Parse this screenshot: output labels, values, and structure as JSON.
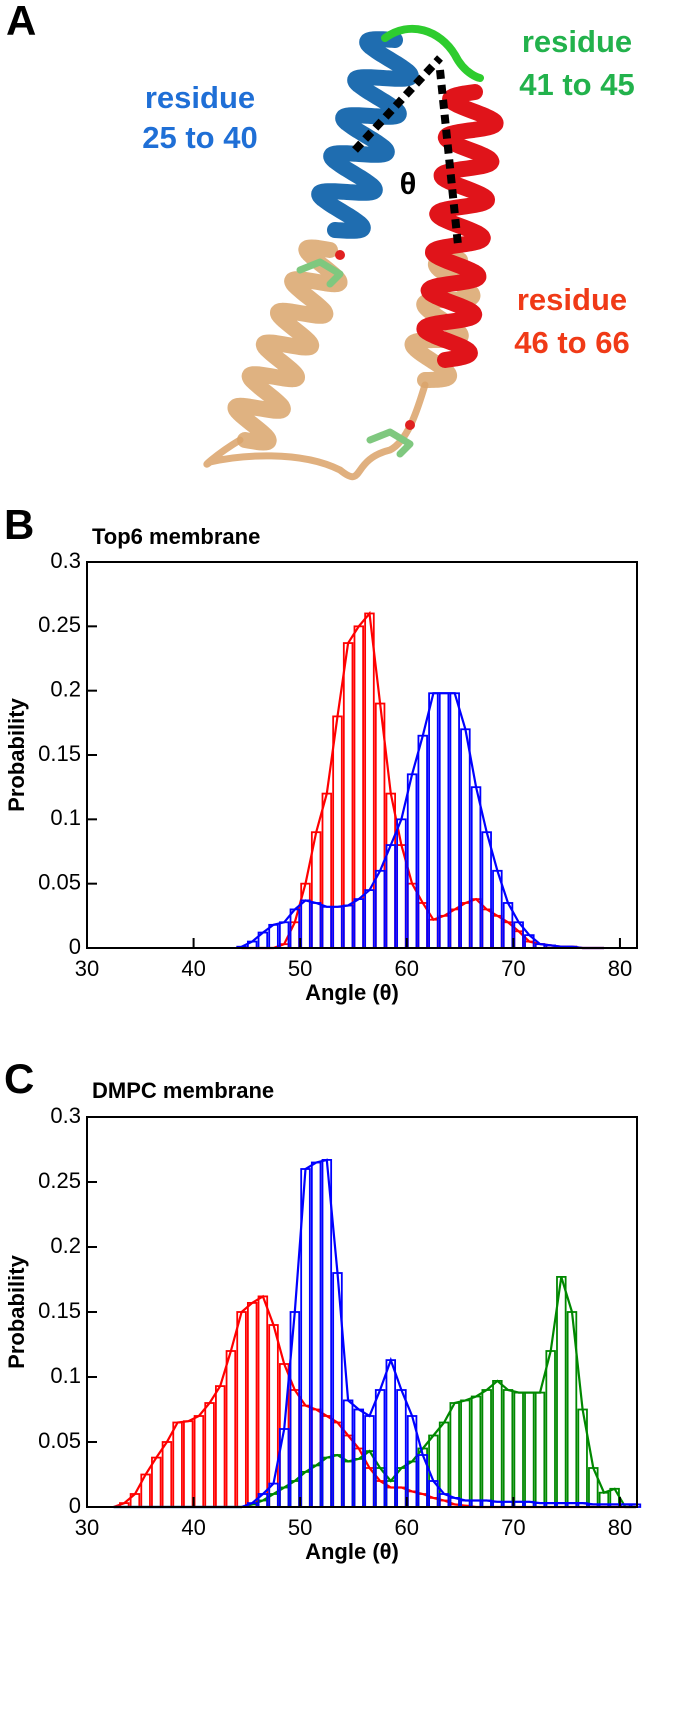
{
  "panel_a": {
    "label": "A",
    "theta": "θ",
    "annotations": [
      {
        "lines": [
          "residue",
          "25 to 40"
        ],
        "color": "#1f6fd6"
      },
      {
        "lines": [
          "residue",
          "41 to 45"
        ],
        "color": "#22b24c"
      },
      {
        "lines": [
          "residue",
          "46 to 66"
        ],
        "color": "#f03a17"
      }
    ]
  },
  "chart_data": [
    {
      "type": "histogram",
      "panel_label": "B",
      "title": "Top6 membrane",
      "xlabel": "Angle (θ)",
      "ylabel": "Probability",
      "xlim": [
        30,
        81.6
      ],
      "ylim": [
        0,
        0.3
      ],
      "xticks": [
        30,
        40,
        50,
        60,
        70,
        80
      ],
      "yticks": [
        0,
        0.05,
        0.1,
        0.15,
        0.2,
        0.25,
        0.3
      ],
      "bins": [
        44,
        45,
        46,
        47,
        48,
        49,
        50,
        51,
        52,
        53,
        54,
        55,
        56,
        57,
        58,
        59,
        60,
        61,
        62,
        63,
        64,
        65,
        66,
        67,
        68,
        69,
        70,
        71,
        72,
        73,
        74,
        75,
        76,
        77,
        78,
        79
      ],
      "series": [
        {
          "color": "#ff0000",
          "values": [
            0,
            0,
            0,
            0,
            0.003,
            0.02,
            0.05,
            0.09,
            0.12,
            0.18,
            0.237,
            0.25,
            0.26,
            0.19,
            0.12,
            0.08,
            0.05,
            0.035,
            0.022,
            0.025,
            0.03,
            0.035,
            0.038,
            0.03,
            0.025,
            0.02,
            0.013,
            0.005,
            0.003,
            0.002,
            0.001,
            0.001,
            0,
            0,
            0
          ]
        },
        {
          "color": "#0000ff",
          "values": [
            0.001,
            0.005,
            0.012,
            0.018,
            0.02,
            0.03,
            0.037,
            0.035,
            0.032,
            0.032,
            0.033,
            0.038,
            0.045,
            0.06,
            0.08,
            0.1,
            0.135,
            0.165,
            0.198,
            0.198,
            0.198,
            0.17,
            0.125,
            0.09,
            0.06,
            0.035,
            0.02,
            0.01,
            0.003,
            0.002,
            0.001,
            0.001,
            0,
            0,
            0
          ]
        }
      ]
    },
    {
      "type": "histogram",
      "panel_label": "C",
      "title": "DMPC membrane",
      "xlabel": "Angle (θ)",
      "ylabel": "Probability",
      "xlim": [
        30,
        81.6
      ],
      "ylim": [
        0,
        0.3
      ],
      "xticks": [
        30,
        40,
        50,
        60,
        70,
        80
      ],
      "yticks": [
        0,
        0.05,
        0.1,
        0.15,
        0.2,
        0.25,
        0.3
      ],
      "bins": [
        32,
        33,
        34,
        35,
        36,
        37,
        38,
        39,
        40,
        41,
        42,
        43,
        44,
        45,
        46,
        47,
        48,
        49,
        50,
        51,
        52,
        53,
        54,
        55,
        56,
        57,
        58,
        59,
        60,
        61,
        62,
        63,
        64,
        65,
        66,
        67,
        68,
        69,
        70,
        71,
        72,
        73,
        74,
        75,
        76,
        77,
        78,
        79,
        80,
        81,
        82
      ],
      "series": [
        {
          "color": "#ff0000",
          "values": [
            0,
            0.003,
            0.01,
            0.025,
            0.038,
            0.05,
            0.065,
            0.066,
            0.07,
            0.08,
            0.093,
            0.12,
            0.15,
            0.157,
            0.162,
            0.14,
            0.11,
            0.09,
            0.078,
            0.075,
            0.07,
            0.065,
            0.055,
            0.045,
            0.03,
            0.02,
            0.015,
            0.015,
            0.012,
            0.01,
            0.007,
            0.005,
            0.002,
            0.001,
            0,
            0,
            0,
            0,
            0,
            0,
            0,
            0,
            0,
            0,
            0,
            0,
            0,
            0,
            0,
            0
          ]
        },
        {
          "color": "#008800",
          "values": [
            0,
            0,
            0,
            0,
            0,
            0,
            0,
            0,
            0,
            0,
            0,
            0,
            0,
            0.002,
            0.005,
            0.01,
            0.015,
            0.02,
            0.027,
            0.032,
            0.038,
            0.04,
            0.035,
            0.037,
            0.043,
            0.03,
            0.02,
            0.03,
            0.035,
            0.045,
            0.055,
            0.065,
            0.08,
            0.082,
            0.085,
            0.09,
            0.097,
            0.09,
            0.088,
            0.088,
            0.088,
            0.12,
            0.177,
            0.15,
            0.075,
            0.03,
            0.011,
            0.014,
            0,
            0
          ]
        },
        {
          "color": "#0000ff",
          "values": [
            0,
            0,
            0,
            0,
            0,
            0,
            0,
            0,
            0,
            0,
            0,
            0,
            0,
            0.003,
            0.01,
            0.018,
            0.06,
            0.15,
            0.26,
            0.265,
            0.267,
            0.18,
            0.082,
            0.075,
            0.07,
            0.09,
            0.113,
            0.09,
            0.07,
            0.04,
            0.02,
            0.01,
            0.007,
            0.005,
            0.005,
            0.005,
            0.004,
            0.004,
            0.004,
            0.004,
            0.003,
            0.003,
            0.003,
            0.003,
            0.003,
            0.002,
            0.002,
            0.002,
            0.002,
            0.002
          ]
        }
      ]
    }
  ]
}
